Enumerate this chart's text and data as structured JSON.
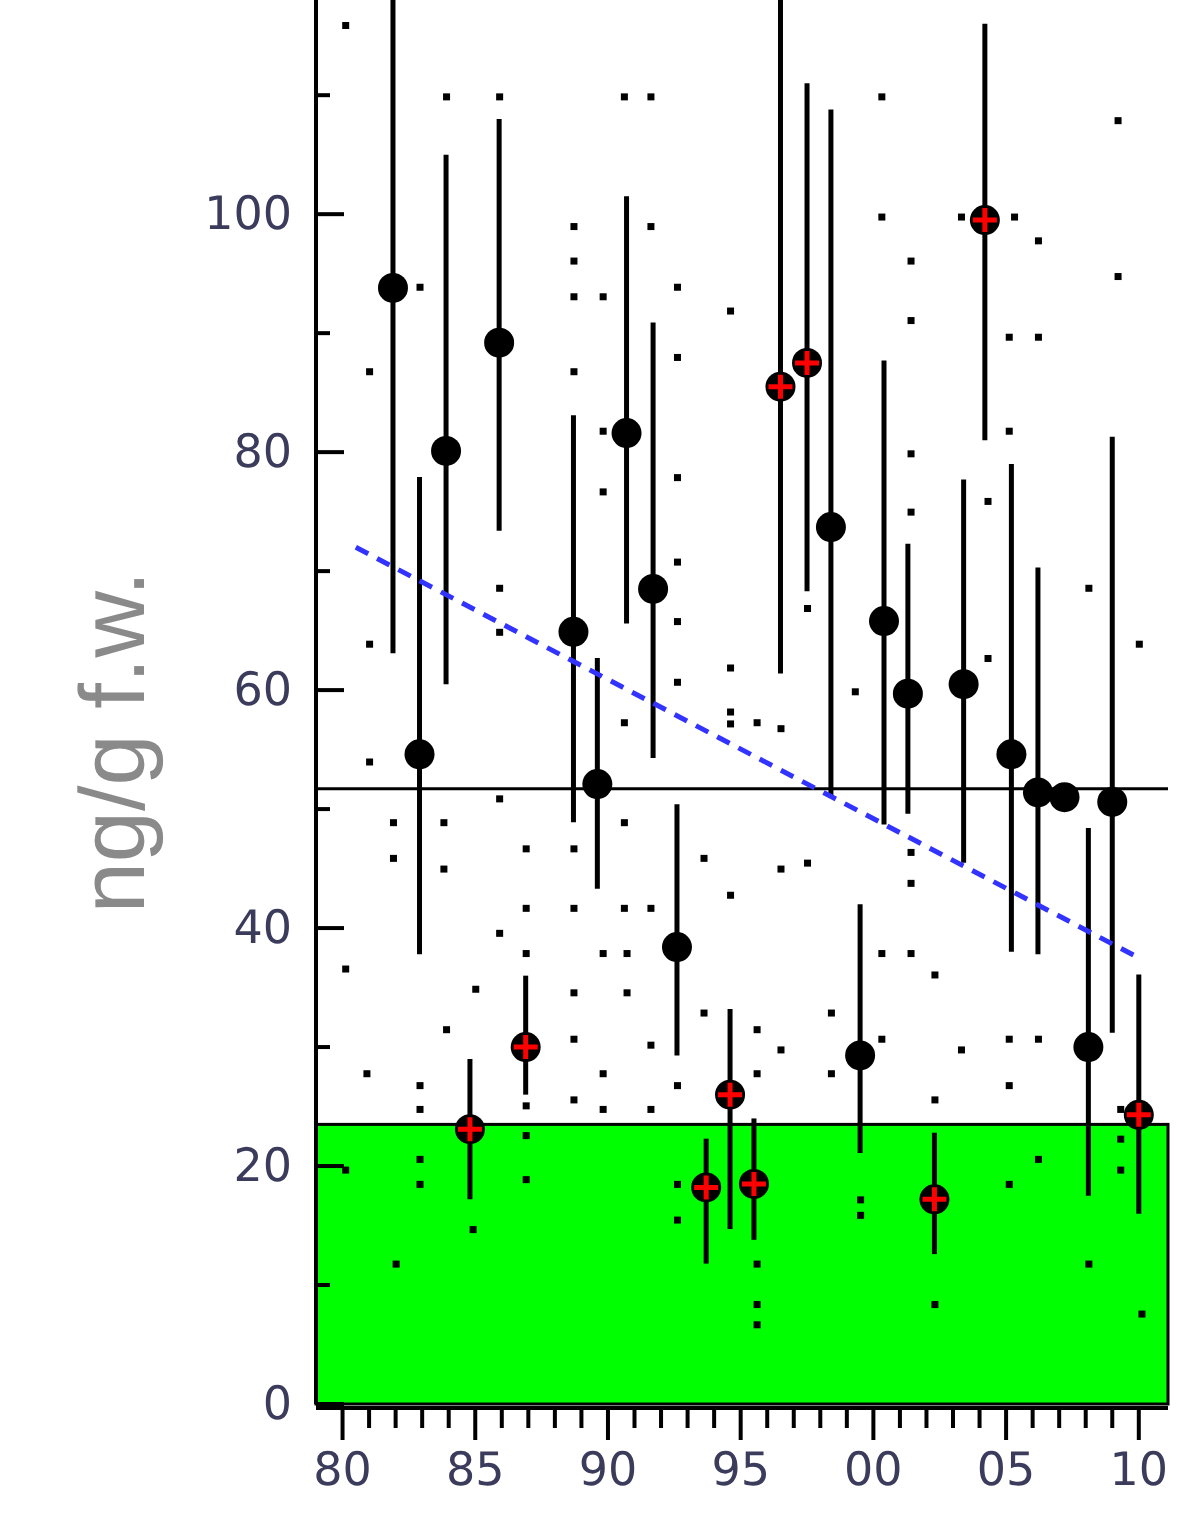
{
  "chart_data": {
    "type": "scatter",
    "ylabel": "ng/g f.w.",
    "xlim": [
      1979,
      2011.1
    ],
    "ylim": [
      0,
      118
    ],
    "xticks": [
      {
        "value": 1980,
        "label": "80"
      },
      {
        "value": 1981,
        "label": null
      },
      {
        "value": 1982,
        "label": null
      },
      {
        "value": 1983,
        "label": null
      },
      {
        "value": 1984,
        "label": null
      },
      {
        "value": 1985,
        "label": "85"
      },
      {
        "value": 1986,
        "label": null
      },
      {
        "value": 1987,
        "label": null
      },
      {
        "value": 1988,
        "label": null
      },
      {
        "value": 1989,
        "label": null
      },
      {
        "value": 1990,
        "label": "90"
      },
      {
        "value": 1991,
        "label": null
      },
      {
        "value": 1992,
        "label": null
      },
      {
        "value": 1993,
        "label": null
      },
      {
        "value": 1994,
        "label": null
      },
      {
        "value": 1995,
        "label": "95"
      },
      {
        "value": 1996,
        "label": null
      },
      {
        "value": 1997,
        "label": null
      },
      {
        "value": 1998,
        "label": null
      },
      {
        "value": 1999,
        "label": null
      },
      {
        "value": 2000,
        "label": "00"
      },
      {
        "value": 2001,
        "label": null
      },
      {
        "value": 2002,
        "label": null
      },
      {
        "value": 2003,
        "label": null
      },
      {
        "value": 2004,
        "label": null
      },
      {
        "value": 2005,
        "label": "05"
      },
      {
        "value": 2006,
        "label": null
      },
      {
        "value": 2007,
        "label": null
      },
      {
        "value": 2008,
        "label": null
      },
      {
        "value": 2009,
        "label": null
      },
      {
        "value": 2010,
        "label": "10"
      }
    ],
    "yticks": [
      0,
      {
        "value": 10,
        "label": null
      },
      20,
      {
        "value": 30,
        "label": null
      },
      40,
      {
        "value": 50,
        "label": null
      },
      60,
      {
        "value": 70,
        "label": null
      },
      80,
      {
        "value": 90,
        "label": null
      },
      100,
      {
        "value": 110,
        "label": null
      }
    ],
    "grid": false,
    "bands": [
      {
        "axis": "y",
        "from": 0,
        "to": 23.5,
        "color": "#00ff00"
      }
    ],
    "ref_lines": [
      {
        "axis": "y",
        "value": 51.7,
        "color": "#000000",
        "line_style": "solid"
      }
    ],
    "series": [
      {
        "marker": "square",
        "color": "#000000",
        "x": [
          1980.1,
          1983.9,
          1985.9,
          1990.6,
          1991.6,
          1988.7,
          1991.6,
          1982.9,
          1988.7,
          1989.8,
          1988.7,
          1992.6,
          1981.0,
          1988.7,
          1992.6,
          1994.6,
          1989.8,
          1989.8,
          1992.6,
          1985.9,
          1981.0,
          1992.6,
          1985.9,
          1992.6,
          1994.6,
          1992.6,
          1994.6,
          1990.6,
          2000.3,
          2000.3,
          2003.3,
          2005.3,
          2006.2,
          2001.4,
          2009.2,
          2009.2,
          2001.4,
          2005.1,
          2006.2,
          2005.1,
          2001.4,
          2001.4,
          2004.3,
          2008.1,
          2010.0,
          1997.5,
          1999.3,
          2004.3,
          1994.6,
          1995.6,
          1996.5,
          1981.0,
          1985.9,
          1981.9,
          1983.8,
          1981.9,
          1983.8,
          1986.9,
          1988.7,
          1990.6,
          1993.6,
          1994.6,
          1985.9,
          1986.9,
          1986.9,
          1988.7,
          1990.6,
          1991.6,
          1989.8,
          1990.7,
          1980.1,
          1988.7,
          1990.7,
          1983.9,
          1985.0,
          1993.6,
          1988.7,
          1991.6,
          1980.9,
          1982.9,
          1982.9,
          1989.8,
          1988.7,
          1989.8,
          1991.6,
          1992.6,
          1986.9,
          1986.9,
          1982.9,
          1982.9,
          1980.1,
          1986.9,
          1992.6,
          1992.6,
          1982.0,
          1984.9,
          1996.5,
          1997.5,
          2001.4,
          2001.4,
          2000.3,
          2001.4,
          2002.3,
          1998.4,
          1996.5,
          1998.4,
          1995.6,
          2000.3,
          2003.3,
          2005.1,
          2006.2,
          2005.1,
          2002.3,
          2009.3,
          1995.6,
          2006.2,
          2005.1,
          2009.3,
          2009.3,
          1995.6,
          1995.6,
          1995.6,
          2002.3,
          2008.1,
          2010.1,
          1999.5,
          1999.5
        ],
        "values": [
          115.9,
          109.9,
          109.9,
          109.9,
          109.9,
          99,
          99,
          93.9,
          96.1,
          93.1,
          93.1,
          93.9,
          86.8,
          86.8,
          88,
          91.9,
          81.8,
          76.7,
          77.9,
          68.6,
          63.9,
          70.8,
          64.9,
          65.8,
          61.9,
          60.7,
          58.2,
          57.3,
          109.9,
          99.8,
          99.8,
          99.8,
          97.8,
          96.1,
          107.9,
          94.8,
          91.1,
          89.7,
          89.7,
          81.8,
          79.9,
          75,
          75.9,
          68.6,
          63.9,
          66.9,
          59.9,
          62.7,
          57.2,
          57.3,
          56.8,
          54,
          50.9,
          48.9,
          48.9,
          45.9,
          45,
          46.7,
          46.7,
          48.9,
          45.9,
          42.8,
          39.6,
          41.7,
          37.9,
          41.7,
          41.7,
          41.7,
          37.9,
          37.9,
          36.6,
          34.6,
          34.6,
          31.5,
          34.9,
          32.9,
          30.7,
          30.2,
          27.8,
          26.8,
          24.8,
          27.8,
          25.6,
          24.8,
          24.8,
          26.8,
          25.1,
          22.6,
          20.6,
          18.5,
          19.7,
          18.9,
          18.5,
          15.5,
          11.8,
          14.7,
          45,
          45.5,
          46.4,
          43.8,
          37.9,
          37.9,
          36.1,
          32.9,
          29.8,
          27.8,
          31.5,
          30.7,
          29.8,
          30.7,
          30.7,
          26.8,
          25.6,
          24.8,
          27.8,
          20.6,
          18.5,
          22.3,
          19.7,
          11.8,
          8.4,
          6.7,
          8.4,
          11.8,
          7.6,
          17.2,
          15.9
        ]
      },
      {
        "marker": "circle",
        "color": "#000000",
        "x": [
          1981.9,
          1982.9,
          1983.9,
          1985.9,
          1988.7,
          1989.6,
          1990.7,
          1991.7,
          1992.6,
          1998.4,
          1999.5,
          2000.4,
          2001.3,
          2003.4,
          2005.2,
          2006.2,
          2007.2,
          2008.1,
          2009.0
        ],
        "values": [
          93.8,
          54.6,
          80.1,
          89.2,
          64.9,
          52.1,
          81.6,
          68.5,
          38.4,
          73.7,
          29.3,
          65.8,
          59.7,
          60.5,
          54.6,
          51.4,
          51,
          30,
          50.6
        ],
        "errors": [
          [
            63.1,
            118
          ],
          [
            37.8,
            77.9
          ],
          [
            60.5,
            105
          ],
          [
            73.4,
            108
          ],
          [
            48.9,
            83.1
          ],
          [
            43.3,
            62.7
          ],
          [
            65.6,
            101.5
          ],
          [
            54.3,
            90.9
          ],
          [
            29.3,
            50.4
          ],
          [
            51,
            108.8
          ],
          [
            21.1,
            42
          ],
          [
            48.7,
            87.7
          ],
          [
            49.6,
            72.3
          ],
          [
            45.5,
            77.7
          ],
          [
            38,
            79
          ],
          [
            37.8,
            70.3
          ],
          null,
          [
            17.5,
            48.4
          ],
          [
            31.2,
            81.3
          ]
        ]
      },
      {
        "marker": "cross",
        "color": "#ff0000",
        "x": [
          1984.8,
          1986.9,
          1993.7,
          1994.6,
          1995.5,
          1996.5,
          1997.5,
          2002.3,
          2004.2,
          2010.0
        ],
        "values": [
          23.1,
          30,
          18.2,
          26,
          18.5,
          85.5,
          87.5,
          17.2,
          99.5,
          24.3
        ],
        "errors": [
          [
            17.2,
            29
          ],
          [
            26,
            36
          ],
          [
            11.8,
            22.3
          ],
          [
            14.7,
            33.2
          ],
          [
            13.8,
            24
          ],
          [
            61.4,
            118
          ],
          [
            68.3,
            111
          ],
          [
            12.6,
            22.8
          ],
          [
            81,
            116
          ],
          [
            16,
            36.1
          ]
        ]
      },
      {
        "type": "line",
        "line_style": "dashed",
        "color": "#3333ff",
        "x": [
          1980.5,
          2010
        ],
        "values": [
          72,
          37.5
        ]
      }
    ]
  }
}
